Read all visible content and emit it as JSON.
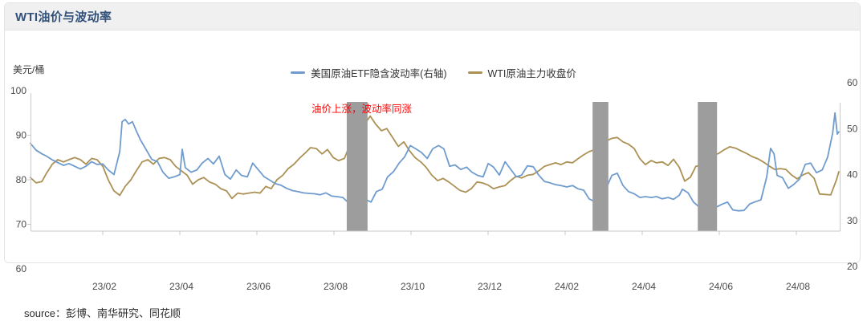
{
  "header": {
    "title": "WTI油价与波动率"
  },
  "footer": {
    "source": "source：彭博、南华研究、同花顺"
  },
  "chart_data": {
    "type": "line",
    "title": "WTI油价与波动率",
    "legend_position": "top-center",
    "grid": false,
    "left_axis": {
      "unit": "美元/桶",
      "ticks": [
        100,
        90,
        80,
        70,
        60
      ],
      "range": [
        60,
        100
      ],
      "series": "WTI原油主力收盘价"
    },
    "right_axis": {
      "ticks": [
        60,
        50,
        40,
        30,
        20
      ],
      "range": [
        20,
        60
      ],
      "series": "美国原油ETF隐含波动率(右轴)"
    },
    "x_axis": {
      "t_unit": "months since 2022-12 (t=2 is tick 23/02, t=20 is tick 24/08)",
      "ticks_t": [
        2,
        4,
        6,
        8,
        10,
        12,
        14,
        16,
        18,
        20
      ],
      "tick_labels": [
        "23/02",
        "23/04",
        "23/06",
        "23/08",
        "23/10",
        "23/12",
        "24/02",
        "24/04",
        "24/06",
        "24/08"
      ]
    },
    "annotations": [
      {
        "text": "油价上涨，波动率同涨",
        "color": "#ff0000"
      }
    ],
    "highlight_bands_t": [
      [
        8.29,
        8.83
      ],
      [
        14.67,
        15.08
      ],
      [
        17.4,
        17.9
      ]
    ],
    "band_color": "#9d9d9d",
    "series": [
      {
        "name": "WTI原油主力收盘价",
        "axis": "left",
        "color": "#ac9155",
        "points": [
          [
            0.08,
            80.5
          ],
          [
            0.23,
            79.3
          ],
          [
            0.38,
            79.6
          ],
          [
            0.5,
            81.5
          ],
          [
            0.65,
            83.5
          ],
          [
            0.79,
            84.5
          ],
          [
            0.94,
            84.0
          ],
          [
            1.08,
            84.5
          ],
          [
            1.23,
            85.0
          ],
          [
            1.38,
            84.5
          ],
          [
            1.52,
            83.5
          ],
          [
            1.67,
            84.8
          ],
          [
            1.81,
            84.5
          ],
          [
            1.96,
            83.0
          ],
          [
            2.1,
            80.0
          ],
          [
            2.25,
            77.5
          ],
          [
            2.4,
            76.5
          ],
          [
            2.54,
            78.5
          ],
          [
            2.69,
            80.0
          ],
          [
            2.83,
            82.0
          ],
          [
            2.98,
            84.0
          ],
          [
            3.13,
            84.5
          ],
          [
            3.27,
            83.5
          ],
          [
            3.42,
            84.8
          ],
          [
            3.56,
            85.0
          ],
          [
            3.71,
            84.5
          ],
          [
            3.85,
            83.0
          ],
          [
            4.0,
            82.0
          ],
          [
            4.15,
            81.0
          ],
          [
            4.29,
            79.0
          ],
          [
            4.44,
            80.0
          ],
          [
            4.58,
            80.5
          ],
          [
            4.73,
            79.5
          ],
          [
            4.88,
            79.0
          ],
          [
            5.02,
            78.0
          ],
          [
            5.17,
            77.5
          ],
          [
            5.31,
            75.8
          ],
          [
            5.46,
            77.0
          ],
          [
            5.6,
            76.8
          ],
          [
            5.75,
            77.0
          ],
          [
            5.9,
            77.2
          ],
          [
            6.04,
            77.0
          ],
          [
            6.19,
            78.5
          ],
          [
            6.33,
            78.0
          ],
          [
            6.48,
            80.0
          ],
          [
            6.63,
            81.0
          ],
          [
            6.77,
            82.5
          ],
          [
            6.92,
            83.5
          ],
          [
            7.06,
            84.8
          ],
          [
            7.21,
            86.0
          ],
          [
            7.35,
            87.2
          ],
          [
            7.5,
            87.0
          ],
          [
            7.65,
            85.8
          ],
          [
            7.79,
            86.8
          ],
          [
            7.94,
            85.0
          ],
          [
            8.08,
            84.3
          ],
          [
            8.23,
            84.8
          ],
          [
            8.38,
            88.0
          ],
          [
            8.52,
            90.5
          ],
          [
            8.67,
            92.0
          ],
          [
            8.81,
            93.2
          ],
          [
            8.9,
            94.3
          ],
          [
            9.04,
            92.5
          ],
          [
            9.19,
            91.0
          ],
          [
            9.33,
            91.5
          ],
          [
            9.48,
            89.5
          ],
          [
            9.63,
            87.5
          ],
          [
            9.77,
            88.5
          ],
          [
            9.92,
            86.5
          ],
          [
            10.06,
            85.0
          ],
          [
            10.21,
            84.0
          ],
          [
            10.35,
            82.8
          ],
          [
            10.5,
            81.0
          ],
          [
            10.65,
            79.8
          ],
          [
            10.79,
            80.3
          ],
          [
            10.94,
            79.5
          ],
          [
            11.08,
            78.6
          ],
          [
            11.23,
            77.6
          ],
          [
            11.38,
            77.2
          ],
          [
            11.52,
            78.0
          ],
          [
            11.67,
            79.5
          ],
          [
            11.81,
            79.3
          ],
          [
            11.96,
            78.8
          ],
          [
            12.1,
            78.0
          ],
          [
            12.25,
            78.4
          ],
          [
            12.4,
            78.7
          ],
          [
            12.54,
            79.8
          ],
          [
            12.69,
            80.8
          ],
          [
            12.83,
            80.4
          ],
          [
            12.98,
            81.0
          ],
          [
            13.13,
            81.2
          ],
          [
            13.27,
            82.0
          ],
          [
            13.42,
            83.0
          ],
          [
            13.56,
            83.4
          ],
          [
            13.71,
            83.8
          ],
          [
            13.85,
            83.4
          ],
          [
            14.0,
            84.0
          ],
          [
            14.15,
            83.8
          ],
          [
            14.29,
            84.7
          ],
          [
            14.44,
            85.6
          ],
          [
            14.58,
            86.3
          ],
          [
            14.73,
            86.8
          ],
          [
            14.88,
            87.5
          ],
          [
            15.02,
            88.7
          ],
          [
            15.17,
            89.3
          ],
          [
            15.31,
            89.5
          ],
          [
            15.46,
            88.5
          ],
          [
            15.6,
            88.0
          ],
          [
            15.75,
            87.0
          ],
          [
            15.9,
            84.7
          ],
          [
            16.04,
            83.4
          ],
          [
            16.19,
            84.3
          ],
          [
            16.33,
            83.8
          ],
          [
            16.48,
            84.0
          ],
          [
            16.63,
            83.2
          ],
          [
            16.77,
            84.6
          ],
          [
            16.92,
            82.8
          ],
          [
            17.06,
            79.7
          ],
          [
            17.21,
            80.6
          ],
          [
            17.35,
            83.0
          ],
          [
            17.5,
            83.3
          ],
          [
            17.65,
            84.8
          ],
          [
            17.79,
            85.5
          ],
          [
            17.94,
            85.9
          ],
          [
            18.08,
            86.7
          ],
          [
            18.23,
            87.4
          ],
          [
            18.38,
            87.1
          ],
          [
            18.52,
            86.5
          ],
          [
            18.67,
            85.9
          ],
          [
            18.81,
            85.2
          ],
          [
            18.96,
            84.7
          ],
          [
            19.1,
            84.0
          ],
          [
            19.25,
            83.1
          ],
          [
            19.4,
            82.3
          ],
          [
            19.54,
            82.5
          ],
          [
            19.69,
            82.3
          ],
          [
            19.83,
            81.1
          ],
          [
            19.98,
            80.2
          ],
          [
            20.13,
            81.1
          ],
          [
            20.27,
            81.6
          ],
          [
            20.42,
            80.3
          ],
          [
            20.56,
            76.8
          ],
          [
            20.71,
            76.7
          ],
          [
            20.85,
            76.6
          ],
          [
            21.0,
            80.0
          ],
          [
            21.06,
            81.8
          ]
        ]
      },
      {
        "name": "美国原油ETF隐含波动率(右轴)",
        "axis": "right",
        "color": "#6f9ccd",
        "points": [
          [
            0.08,
            46.8
          ],
          [
            0.23,
            45.3
          ],
          [
            0.38,
            44.5
          ],
          [
            0.5,
            44.0
          ],
          [
            0.65,
            43.2
          ],
          [
            0.79,
            42.6
          ],
          [
            0.94,
            42.0
          ],
          [
            1.08,
            42.4
          ],
          [
            1.23,
            41.8
          ],
          [
            1.38,
            41.2
          ],
          [
            1.52,
            41.8
          ],
          [
            1.67,
            42.8
          ],
          [
            1.81,
            42.2
          ],
          [
            1.96,
            42.3
          ],
          [
            2.1,
            41.0
          ],
          [
            2.25,
            40.0
          ],
          [
            2.4,
            45.0
          ],
          [
            2.46,
            51.5
          ],
          [
            2.54,
            52.0
          ],
          [
            2.63,
            51.0
          ],
          [
            2.73,
            51.5
          ],
          [
            2.83,
            49.5
          ],
          [
            2.94,
            47.5
          ],
          [
            3.08,
            45.5
          ],
          [
            3.23,
            43.3
          ],
          [
            3.38,
            42.8
          ],
          [
            3.52,
            40.5
          ],
          [
            3.67,
            39.2
          ],
          [
            3.81,
            39.5
          ],
          [
            3.96,
            40.0
          ],
          [
            4.02,
            45.5
          ],
          [
            4.1,
            41.5
          ],
          [
            4.25,
            40.5
          ],
          [
            4.4,
            41.0
          ],
          [
            4.54,
            42.5
          ],
          [
            4.69,
            43.5
          ],
          [
            4.83,
            42.3
          ],
          [
            4.98,
            44.0
          ],
          [
            5.13,
            40.0
          ],
          [
            5.27,
            39.0
          ],
          [
            5.42,
            41.0
          ],
          [
            5.56,
            39.8
          ],
          [
            5.71,
            39.5
          ],
          [
            5.85,
            42.5
          ],
          [
            6.0,
            41.0
          ],
          [
            6.15,
            39.5
          ],
          [
            6.29,
            38.8
          ],
          [
            6.44,
            38.0
          ],
          [
            6.58,
            37.7
          ],
          [
            6.73,
            37.0
          ],
          [
            6.88,
            36.5
          ],
          [
            7.02,
            36.3
          ],
          [
            7.17,
            36.0
          ],
          [
            7.31,
            35.9
          ],
          [
            7.46,
            35.8
          ],
          [
            7.6,
            35.6
          ],
          [
            7.75,
            36.0
          ],
          [
            7.9,
            35.3
          ],
          [
            8.04,
            35.2
          ],
          [
            8.19,
            35.0
          ],
          [
            8.33,
            33.9
          ],
          [
            8.48,
            32.7
          ],
          [
            8.63,
            33.3
          ],
          [
            8.77,
            34.6
          ],
          [
            8.92,
            34.0
          ],
          [
            9.06,
            36.3
          ],
          [
            9.21,
            36.8
          ],
          [
            9.35,
            39.5
          ],
          [
            9.5,
            40.6
          ],
          [
            9.65,
            42.5
          ],
          [
            9.79,
            43.8
          ],
          [
            9.94,
            46.3
          ],
          [
            10.08,
            45.6
          ],
          [
            10.23,
            44.8
          ],
          [
            10.38,
            43.5
          ],
          [
            10.52,
            45.6
          ],
          [
            10.67,
            46.3
          ],
          [
            10.81,
            45.6
          ],
          [
            10.96,
            41.8
          ],
          [
            11.1,
            42.1
          ],
          [
            11.25,
            41.1
          ],
          [
            11.4,
            41.6
          ],
          [
            11.54,
            40.5
          ],
          [
            11.69,
            39.8
          ],
          [
            11.83,
            39.5
          ],
          [
            11.96,
            42.4
          ],
          [
            12.1,
            41.6
          ],
          [
            12.25,
            39.9
          ],
          [
            12.4,
            42.8
          ],
          [
            12.54,
            41.2
          ],
          [
            12.69,
            39.5
          ],
          [
            12.83,
            39.9
          ],
          [
            12.98,
            41.9
          ],
          [
            13.13,
            41.7
          ],
          [
            13.27,
            39.9
          ],
          [
            13.42,
            38.5
          ],
          [
            13.56,
            38.2
          ],
          [
            13.71,
            37.8
          ],
          [
            13.85,
            37.6
          ],
          [
            14.0,
            37.3
          ],
          [
            14.15,
            37.6
          ],
          [
            14.29,
            36.9
          ],
          [
            14.44,
            36.6
          ],
          [
            14.58,
            34.7
          ],
          [
            14.73,
            34.1
          ],
          [
            14.88,
            34.3
          ],
          [
            15.02,
            37.0
          ],
          [
            15.17,
            39.8
          ],
          [
            15.31,
            40.3
          ],
          [
            15.46,
            37.6
          ],
          [
            15.6,
            36.3
          ],
          [
            15.75,
            35.8
          ],
          [
            15.9,
            35.0
          ],
          [
            16.04,
            35.2
          ],
          [
            16.19,
            35.0
          ],
          [
            16.33,
            35.2
          ],
          [
            16.48,
            34.7
          ],
          [
            16.63,
            35.0
          ],
          [
            16.77,
            34.6
          ],
          [
            16.92,
            35.5
          ],
          [
            17.0,
            36.8
          ],
          [
            17.15,
            36.0
          ],
          [
            17.29,
            34.0
          ],
          [
            17.44,
            32.9
          ],
          [
            17.58,
            32.6
          ],
          [
            17.73,
            32.3
          ],
          [
            17.88,
            32.9
          ],
          [
            18.02,
            33.5
          ],
          [
            18.17,
            34.0
          ],
          [
            18.31,
            32.3
          ],
          [
            18.46,
            32.1
          ],
          [
            18.6,
            32.2
          ],
          [
            18.75,
            33.6
          ],
          [
            18.9,
            34.1
          ],
          [
            19.04,
            34.5
          ],
          [
            19.19,
            39.5
          ],
          [
            19.29,
            45.7
          ],
          [
            19.38,
            44.5
          ],
          [
            19.46,
            39.8
          ],
          [
            19.6,
            39.3
          ],
          [
            19.75,
            37.0
          ],
          [
            19.9,
            37.9
          ],
          [
            20.04,
            39.0
          ],
          [
            20.19,
            42.2
          ],
          [
            20.33,
            42.5
          ],
          [
            20.48,
            40.4
          ],
          [
            20.63,
            41.0
          ],
          [
            20.77,
            43.8
          ],
          [
            20.9,
            49.0
          ],
          [
            20.96,
            53.4
          ],
          [
            21.02,
            48.8
          ],
          [
            21.06,
            49.3
          ]
        ]
      }
    ]
  }
}
